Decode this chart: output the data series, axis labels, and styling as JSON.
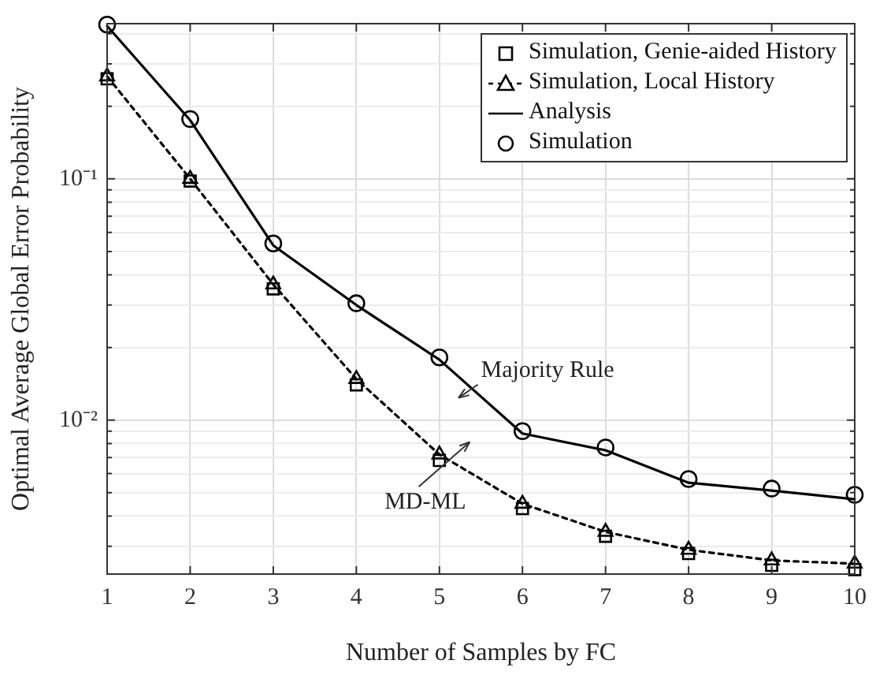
{
  "chart_data": {
    "type": "line",
    "xlabel": "Number of Samples by FC",
    "ylabel": "Optimal Average Global Error Probability",
    "x": [
      1,
      2,
      3,
      4,
      5,
      6,
      7,
      8,
      9,
      10
    ],
    "series": [
      {
        "name": "Simulation, Genie-aided History",
        "type": "scatter",
        "marker": "square",
        "color": "#000000",
        "values": [
          0.26,
          0.098,
          0.035,
          0.014,
          0.0068,
          0.0043,
          0.0033,
          0.0028,
          0.0025,
          0.0024
        ]
      },
      {
        "name": "Simulation, Local History",
        "marker": "triangle",
        "line_style": "dotted",
        "color": "#000000",
        "values": [
          0.266,
          0.1,
          0.0365,
          0.0148,
          0.0072,
          0.0045,
          0.00344,
          0.0029,
          0.00262,
          0.00254
        ]
      },
      {
        "name": "Analysis",
        "marker": "none",
        "line_style": "solid",
        "color": "#000000",
        "values": [
          0.43,
          0.175,
          0.053,
          0.03,
          0.0178,
          0.0088,
          0.0075,
          0.0055,
          0.0051,
          0.0047
        ]
      },
      {
        "name": "Simulation",
        "type": "scatter",
        "marker": "circle",
        "color": "#000000",
        "values": [
          0.436,
          0.177,
          0.054,
          0.0305,
          0.0182,
          0.009,
          0.0077,
          0.0057,
          0.0052,
          0.0049
        ]
      }
    ],
    "log": "y",
    "xlim": [
      1,
      10
    ],
    "xticks": [
      1,
      2,
      3,
      4,
      5,
      6,
      7,
      8,
      9,
      10
    ],
    "ylim": [
      0.0023,
      0.44
    ],
    "yticks": [
      {
        "value": 0.003,
        "label": null
      },
      {
        "value": 0.004,
        "label": null
      },
      {
        "value": 0.005,
        "label": null
      },
      {
        "value": 0.006,
        "label": null
      },
      {
        "value": 0.007,
        "label": null
      },
      {
        "value": 0.008,
        "label": null
      },
      {
        "value": 0.009,
        "label": null
      },
      {
        "value": 0.01,
        "label": "10⁻²"
      },
      {
        "value": 0.02,
        "label": null
      },
      {
        "value": 0.03,
        "label": null
      },
      {
        "value": 0.04,
        "label": null
      },
      {
        "value": 0.05,
        "label": null
      },
      {
        "value": 0.06,
        "label": null
      },
      {
        "value": 0.07,
        "label": null
      },
      {
        "value": 0.08,
        "label": null
      },
      {
        "value": 0.09,
        "label": null
      },
      {
        "value": 0.1,
        "label": "10⁻¹"
      },
      {
        "value": 0.2,
        "label": null
      },
      {
        "value": 0.3,
        "label": null
      },
      {
        "value": 0.4,
        "label": null
      }
    ],
    "grid": true,
    "legend": "top right",
    "annotations": [
      "Majority Rule",
      "MD-ML"
    ]
  }
}
